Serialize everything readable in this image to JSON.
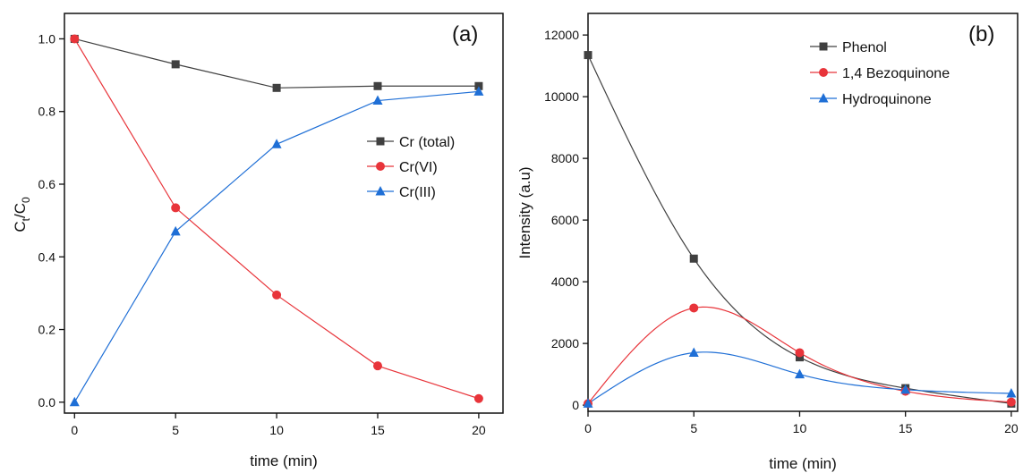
{
  "chart_data": [
    {
      "type": "line",
      "panel_label": "(a)",
      "xlabel": "time (min)",
      "ylabel": "C",
      "ylabel_sub1": "t",
      "ylabel_slash": "/C",
      "ylabel_sub2": "0",
      "xlim": [
        -0.5,
        21.2
      ],
      "ylim": [
        -0.03,
        1.07
      ],
      "xticks": [
        0,
        5,
        10,
        15,
        20
      ],
      "xtick_labels": [
        "0",
        "5",
        "10",
        "15",
        "20"
      ],
      "yticks": [
        0.0,
        0.2,
        0.4,
        0.6,
        0.8,
        1.0
      ],
      "ytick_labels": [
        "0.0",
        "0.2",
        "0.4",
        "0.6",
        "0.8",
        "1.0"
      ],
      "grid": false,
      "legend_position": "center-right",
      "x": [
        0,
        5,
        10,
        15,
        20
      ],
      "series": [
        {
          "name": "Cr (total)",
          "color": "#404040",
          "marker": "square",
          "values": [
            1.0,
            0.93,
            0.865,
            0.87,
            0.87
          ]
        },
        {
          "name": "Cr(VI)",
          "color": "#e8343a",
          "marker": "circle",
          "values": [
            1.0,
            0.535,
            0.295,
            0.1,
            0.01
          ]
        },
        {
          "name": "Cr(III)",
          "color": "#1f6fd6",
          "marker": "triangle",
          "values": [
            0.0,
            0.47,
            0.71,
            0.83,
            0.855
          ]
        }
      ]
    },
    {
      "type": "line",
      "panel_label": "(b)",
      "xlabel": "time (min)",
      "ylabel": "Intensity (a.u)",
      "xlim": [
        0,
        20.3
      ],
      "ylim": [
        -200,
        12700
      ],
      "xticks": [
        0,
        5,
        10,
        15,
        20
      ],
      "xtick_labels": [
        "0",
        "5",
        "10",
        "15",
        "20"
      ],
      "yticks": [
        0,
        2000,
        4000,
        6000,
        8000,
        10000,
        12000
      ],
      "ytick_labels": [
        "0",
        "2000",
        "4000",
        "6000",
        "8000",
        "10000",
        "12000"
      ],
      "grid": false,
      "legend_position": "top-right",
      "x": [
        0,
        5,
        10,
        15,
        20
      ],
      "series": [
        {
          "name": "Phenol",
          "color": "#404040",
          "marker": "square",
          "values": [
            11350,
            4750,
            1550,
            550,
            50
          ]
        },
        {
          "name": "1,4 Bezoquinone",
          "color": "#e8343a",
          "marker": "circle",
          "values": [
            50,
            3150,
            1700,
            450,
            100
          ]
        },
        {
          "name": "Hydroquinone",
          "color": "#1f6fd6",
          "marker": "triangle",
          "values": [
            50,
            1700,
            1000,
            500,
            380
          ]
        }
      ]
    }
  ]
}
